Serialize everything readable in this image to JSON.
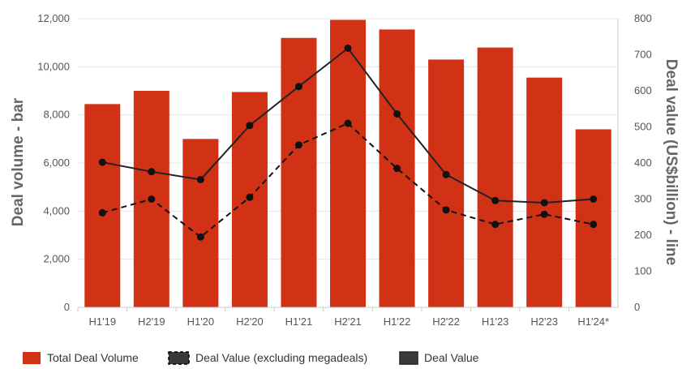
{
  "chart_data": {
    "type": "bar",
    "categories": [
      "H1'19",
      "H2'19",
      "H1'20",
      "H2'20",
      "H1'21",
      "H2'21",
      "H1'22",
      "H2'22",
      "H1'23",
      "H2'23",
      "H1'24*"
    ],
    "y_left": {
      "label": "Deal volume - bar",
      "range": [
        0,
        12000
      ],
      "ticks": [
        "0",
        "2,000",
        "4,000",
        "6,000",
        "8,000",
        "10,000",
        "12,000"
      ],
      "tick_values": [
        0,
        2000,
        4000,
        6000,
        8000,
        10000,
        12000
      ]
    },
    "y_right": {
      "label": "Deal value (US$billion) - line",
      "range": [
        0,
        800
      ],
      "ticks": [
        "0",
        "100",
        "200",
        "300",
        "400",
        "500",
        "600",
        "700",
        "800"
      ],
      "tick_values": [
        0,
        100,
        200,
        300,
        400,
        500,
        600,
        700,
        800
      ]
    },
    "series": [
      {
        "name": "Total Deal Volume",
        "type": "bar",
        "axis": "left",
        "color": "#d13216",
        "values": [
          8450,
          9000,
          7000,
          8950,
          11200,
          11950,
          11550,
          10300,
          10800,
          9550,
          7400
        ]
      },
      {
        "name": "Deal Value (excluding megadeals)",
        "type": "line",
        "style": "dashed",
        "axis": "right",
        "color": "#111111",
        "values": [
          262,
          300,
          195,
          305,
          450,
          510,
          385,
          270,
          230,
          258,
          230
        ]
      },
      {
        "name": "Deal Value",
        "type": "line",
        "style": "solid",
        "axis": "right",
        "color": "#222222",
        "values": [
          402,
          376,
          354,
          504,
          612,
          718,
          536,
          368,
          296,
          290,
          300
        ]
      }
    ],
    "legend_position": "bottom",
    "grid": true,
    "grid_color": "#e6e6e6"
  }
}
